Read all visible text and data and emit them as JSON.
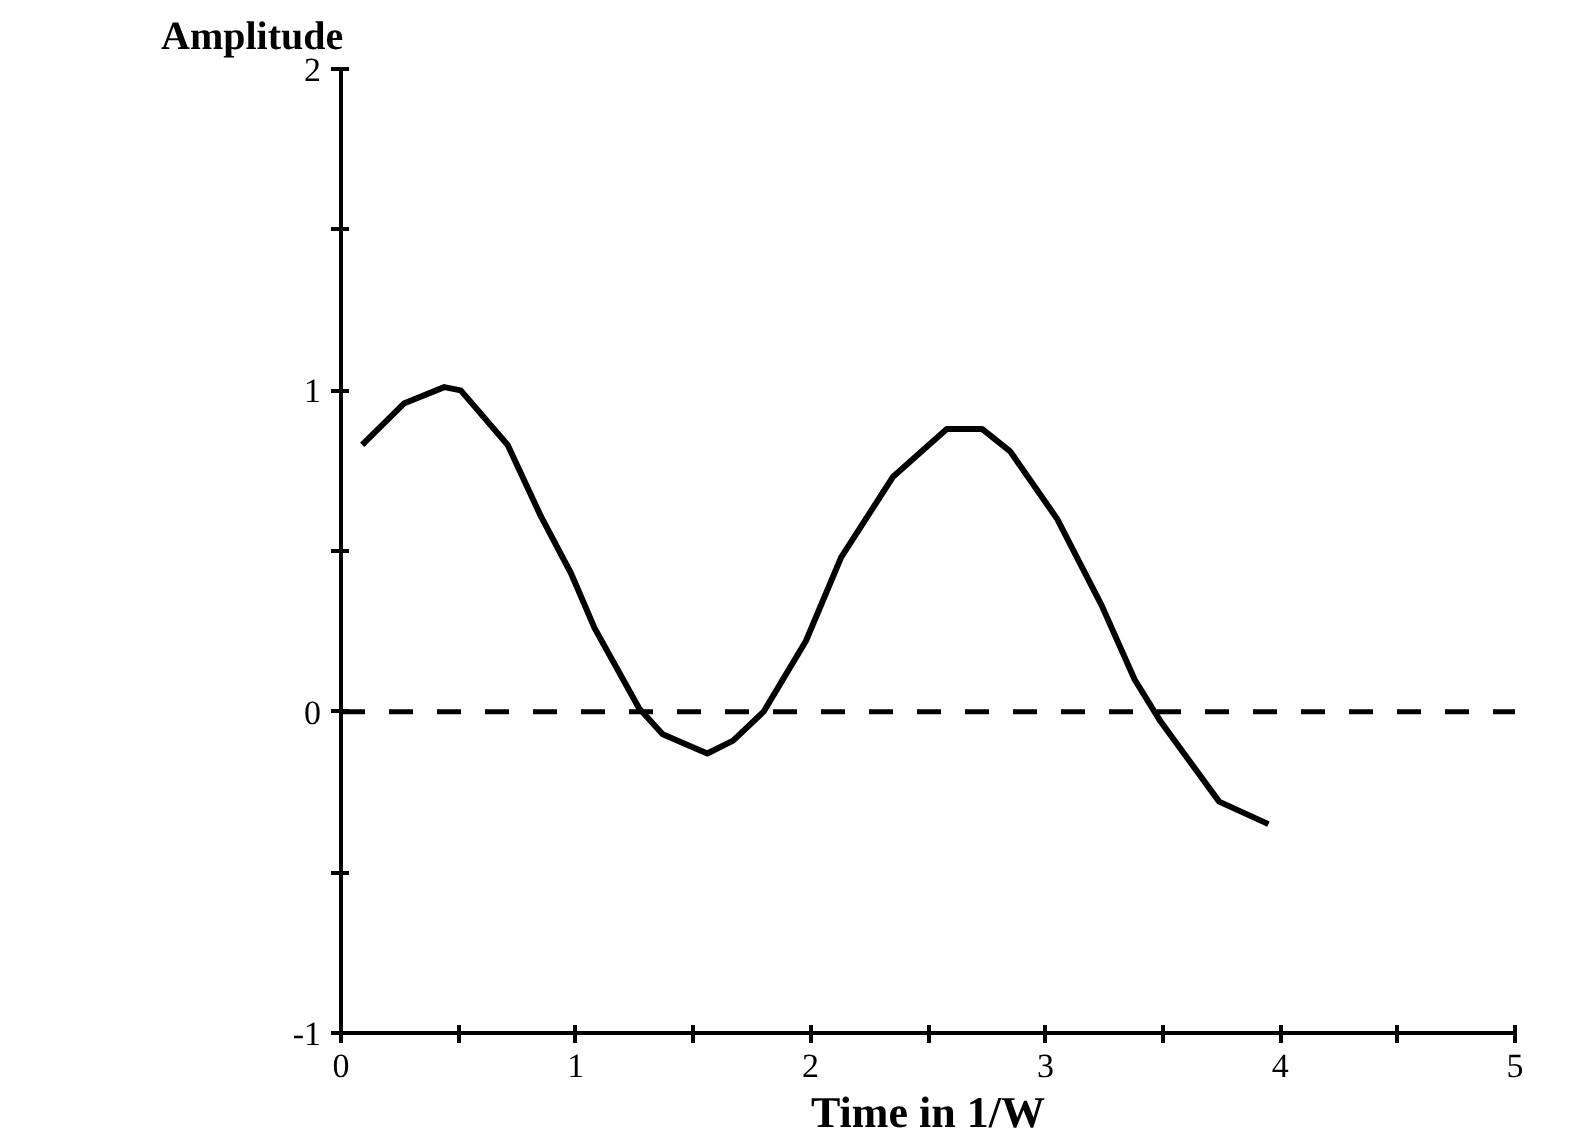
{
  "chart_data": {
    "type": "line",
    "title": "Amplitude",
    "xlabel": "Time in 1/W",
    "x": [
      0.09,
      0.27,
      0.44,
      0.51,
      0.71,
      0.85,
      0.98,
      1.08,
      1.27,
      1.37,
      1.56,
      1.67,
      1.8,
      1.98,
      2.13,
      2.35,
      2.58,
      2.73,
      2.85,
      3.05,
      3.24,
      3.38,
      3.49,
      3.74,
      3.95
    ],
    "series": [
      {
        "color": "#000000",
        "values": [
          0.83,
          0.96,
          1.01,
          1.0,
          0.83,
          0.61,
          0.43,
          0.26,
          0.01,
          -0.07,
          -0.13,
          -0.09,
          0.0,
          0.22,
          0.48,
          0.73,
          0.88,
          0.88,
          0.81,
          0.6,
          0.33,
          0.1,
          -0.03,
          -0.28,
          -0.35
        ]
      }
    ],
    "xlim": [
      0,
      5
    ],
    "ylim": [
      -1,
      2
    ],
    "xticks": [
      0,
      {
        "value": 0.5,
        "label": null
      },
      1,
      {
        "value": 1.5,
        "label": null
      },
      2,
      {
        "value": 2.5,
        "label": null
      },
      3,
      {
        "value": 3.5,
        "label": null
      },
      4,
      {
        "value": 4.5,
        "label": null
      },
      5
    ],
    "yticks": [
      -1,
      {
        "value": -0.5,
        "label": null
      },
      0,
      {
        "value": 0.5,
        "label": null
      },
      1,
      {
        "value": 1.5,
        "label": null
      },
      2
    ],
    "ref_lines": [
      {
        "axis": "y",
        "value": 0,
        "line_style": "dashed",
        "color": "#000000"
      }
    ],
    "grid": false,
    "marker": "none",
    "line_style": "solid"
  }
}
